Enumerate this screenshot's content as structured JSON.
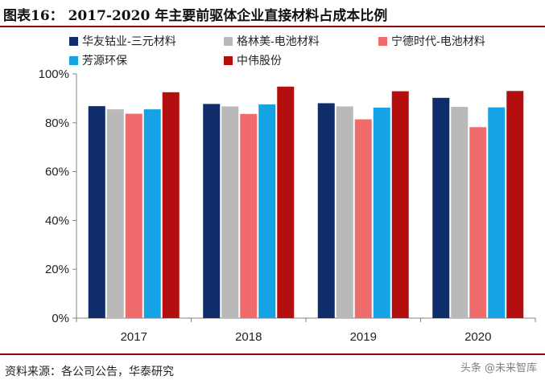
{
  "title": {
    "prefix": "图表16：",
    "text": "2017-2020 年主要前驱体企业直接材料占成本比例"
  },
  "source": "资料来源：各公司公告，华泰研究",
  "watermark": "头条 @未来智库",
  "chart_data": {
    "type": "bar",
    "categories": [
      "2017",
      "2018",
      "2019",
      "2020"
    ],
    "ylim": [
      0,
      100
    ],
    "yticks": [
      0,
      20,
      40,
      60,
      80,
      100
    ],
    "ytick_labels": [
      "0%",
      "20%",
      "40%",
      "60%",
      "80%",
      "100%"
    ],
    "grid": false,
    "legend_position": "top",
    "series": [
      {
        "name": "华友钴业-三元材料",
        "color": "#0f2d6b",
        "values": [
          86.8,
          87.7,
          88.0,
          90.2
        ]
      },
      {
        "name": "格林美-电池材料",
        "color": "#b9b9b9",
        "values": [
          85.5,
          86.7,
          86.7,
          86.5
        ]
      },
      {
        "name": "宁德时代-电池材料",
        "color": "#f06b6b",
        "values": [
          83.7,
          83.6,
          81.4,
          78.2
        ]
      },
      {
        "name": "芳源环保",
        "color": "#16a3e6",
        "values": [
          85.5,
          87.5,
          86.2,
          86.3
        ]
      },
      {
        "name": "中伟股份",
        "color": "#b30f0f",
        "values": [
          92.5,
          94.8,
          92.9,
          93.0
        ]
      }
    ]
  }
}
